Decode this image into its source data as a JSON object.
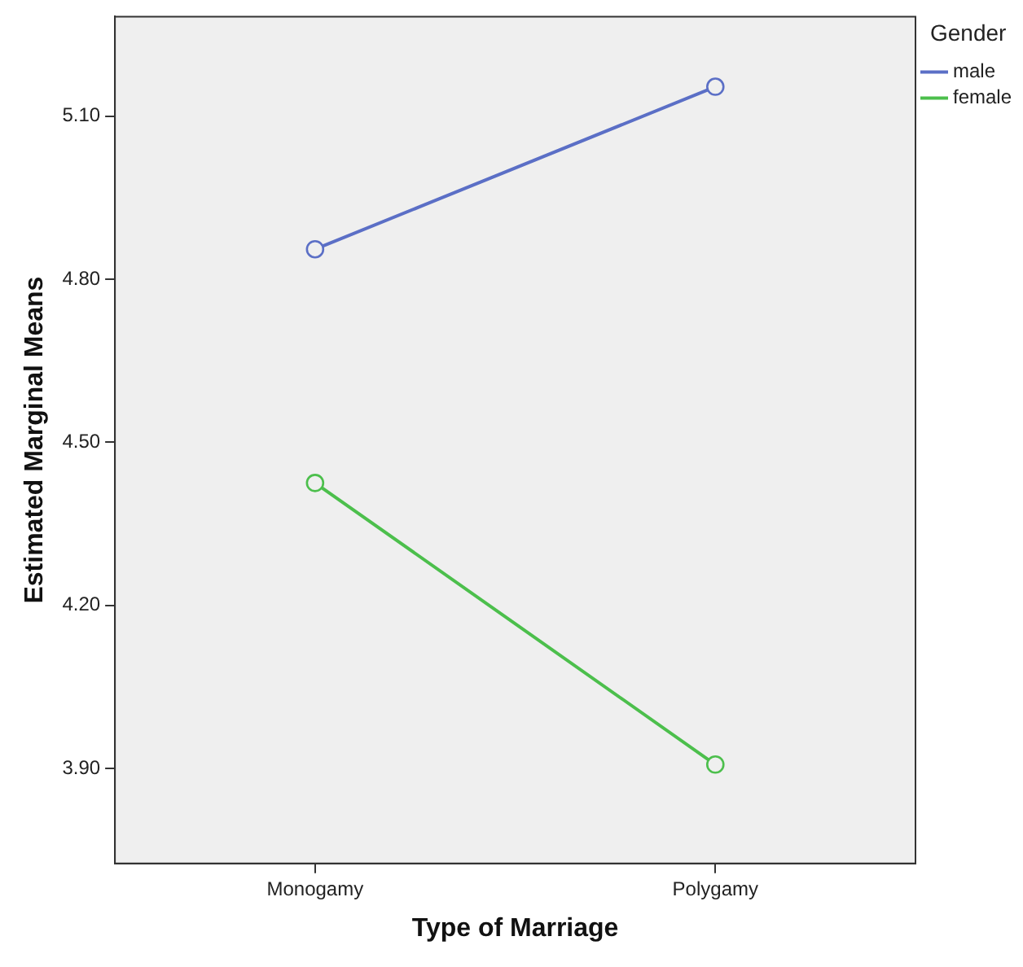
{
  "chart_data": {
    "type": "line",
    "xlabel": "Type of Marriage",
    "ylabel": "Estimated Marginal Means",
    "legend_title": "Gender",
    "categories": [
      "Monogamy",
      "Polygamy"
    ],
    "series": [
      {
        "name": "male",
        "color": "#5b6fc6",
        "values": [
          4.855,
          5.154
        ]
      },
      {
        "name": "female",
        "color": "#4cbf4c",
        "values": [
          4.425,
          3.907
        ]
      }
    ],
    "ylim": [
      3.725,
      5.283
    ],
    "yticks": [
      {
        "value": 3.9,
        "label": "3.90"
      },
      {
        "value": 4.2,
        "label": "4.20"
      },
      {
        "value": 4.5,
        "label": "4.50"
      },
      {
        "value": 4.8,
        "label": "4.80"
      },
      {
        "value": 5.1,
        "label": "5.10"
      }
    ],
    "grid": false,
    "legend": "top right",
    "marker": "circle",
    "line_style": "solid"
  }
}
